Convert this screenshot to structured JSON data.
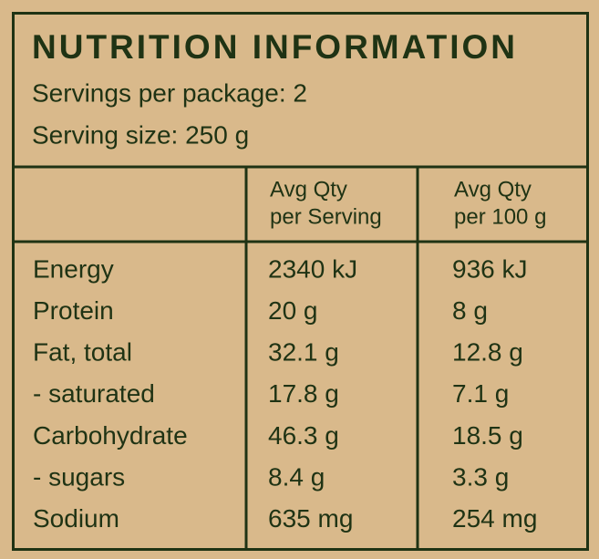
{
  "header": {
    "title": "NUTRITION INFORMATION",
    "servings": "Servings per package: 2",
    "serving_size": "Serving size: 250 g"
  },
  "table": {
    "columns": [
      [
        "Avg Qty",
        "per Serving"
      ],
      [
        "Avg Qty",
        "per 100 g"
      ]
    ],
    "rows": [
      [
        "Energy",
        "2340 kJ",
        "936 kJ"
      ],
      [
        "Protein",
        "20 g",
        "8 g"
      ],
      [
        "Fat, total",
        "32.1 g",
        "12.8 g"
      ],
      [
        "- saturated",
        "17.8 g",
        "7.1 g"
      ],
      [
        "Carbohydrate",
        "46.3 g",
        "18.5 g"
      ],
      [
        "- sugars",
        "8.4 g",
        "3.3 g"
      ],
      [
        "Sodium",
        "635 mg",
        "254 mg"
      ]
    ]
  }
}
